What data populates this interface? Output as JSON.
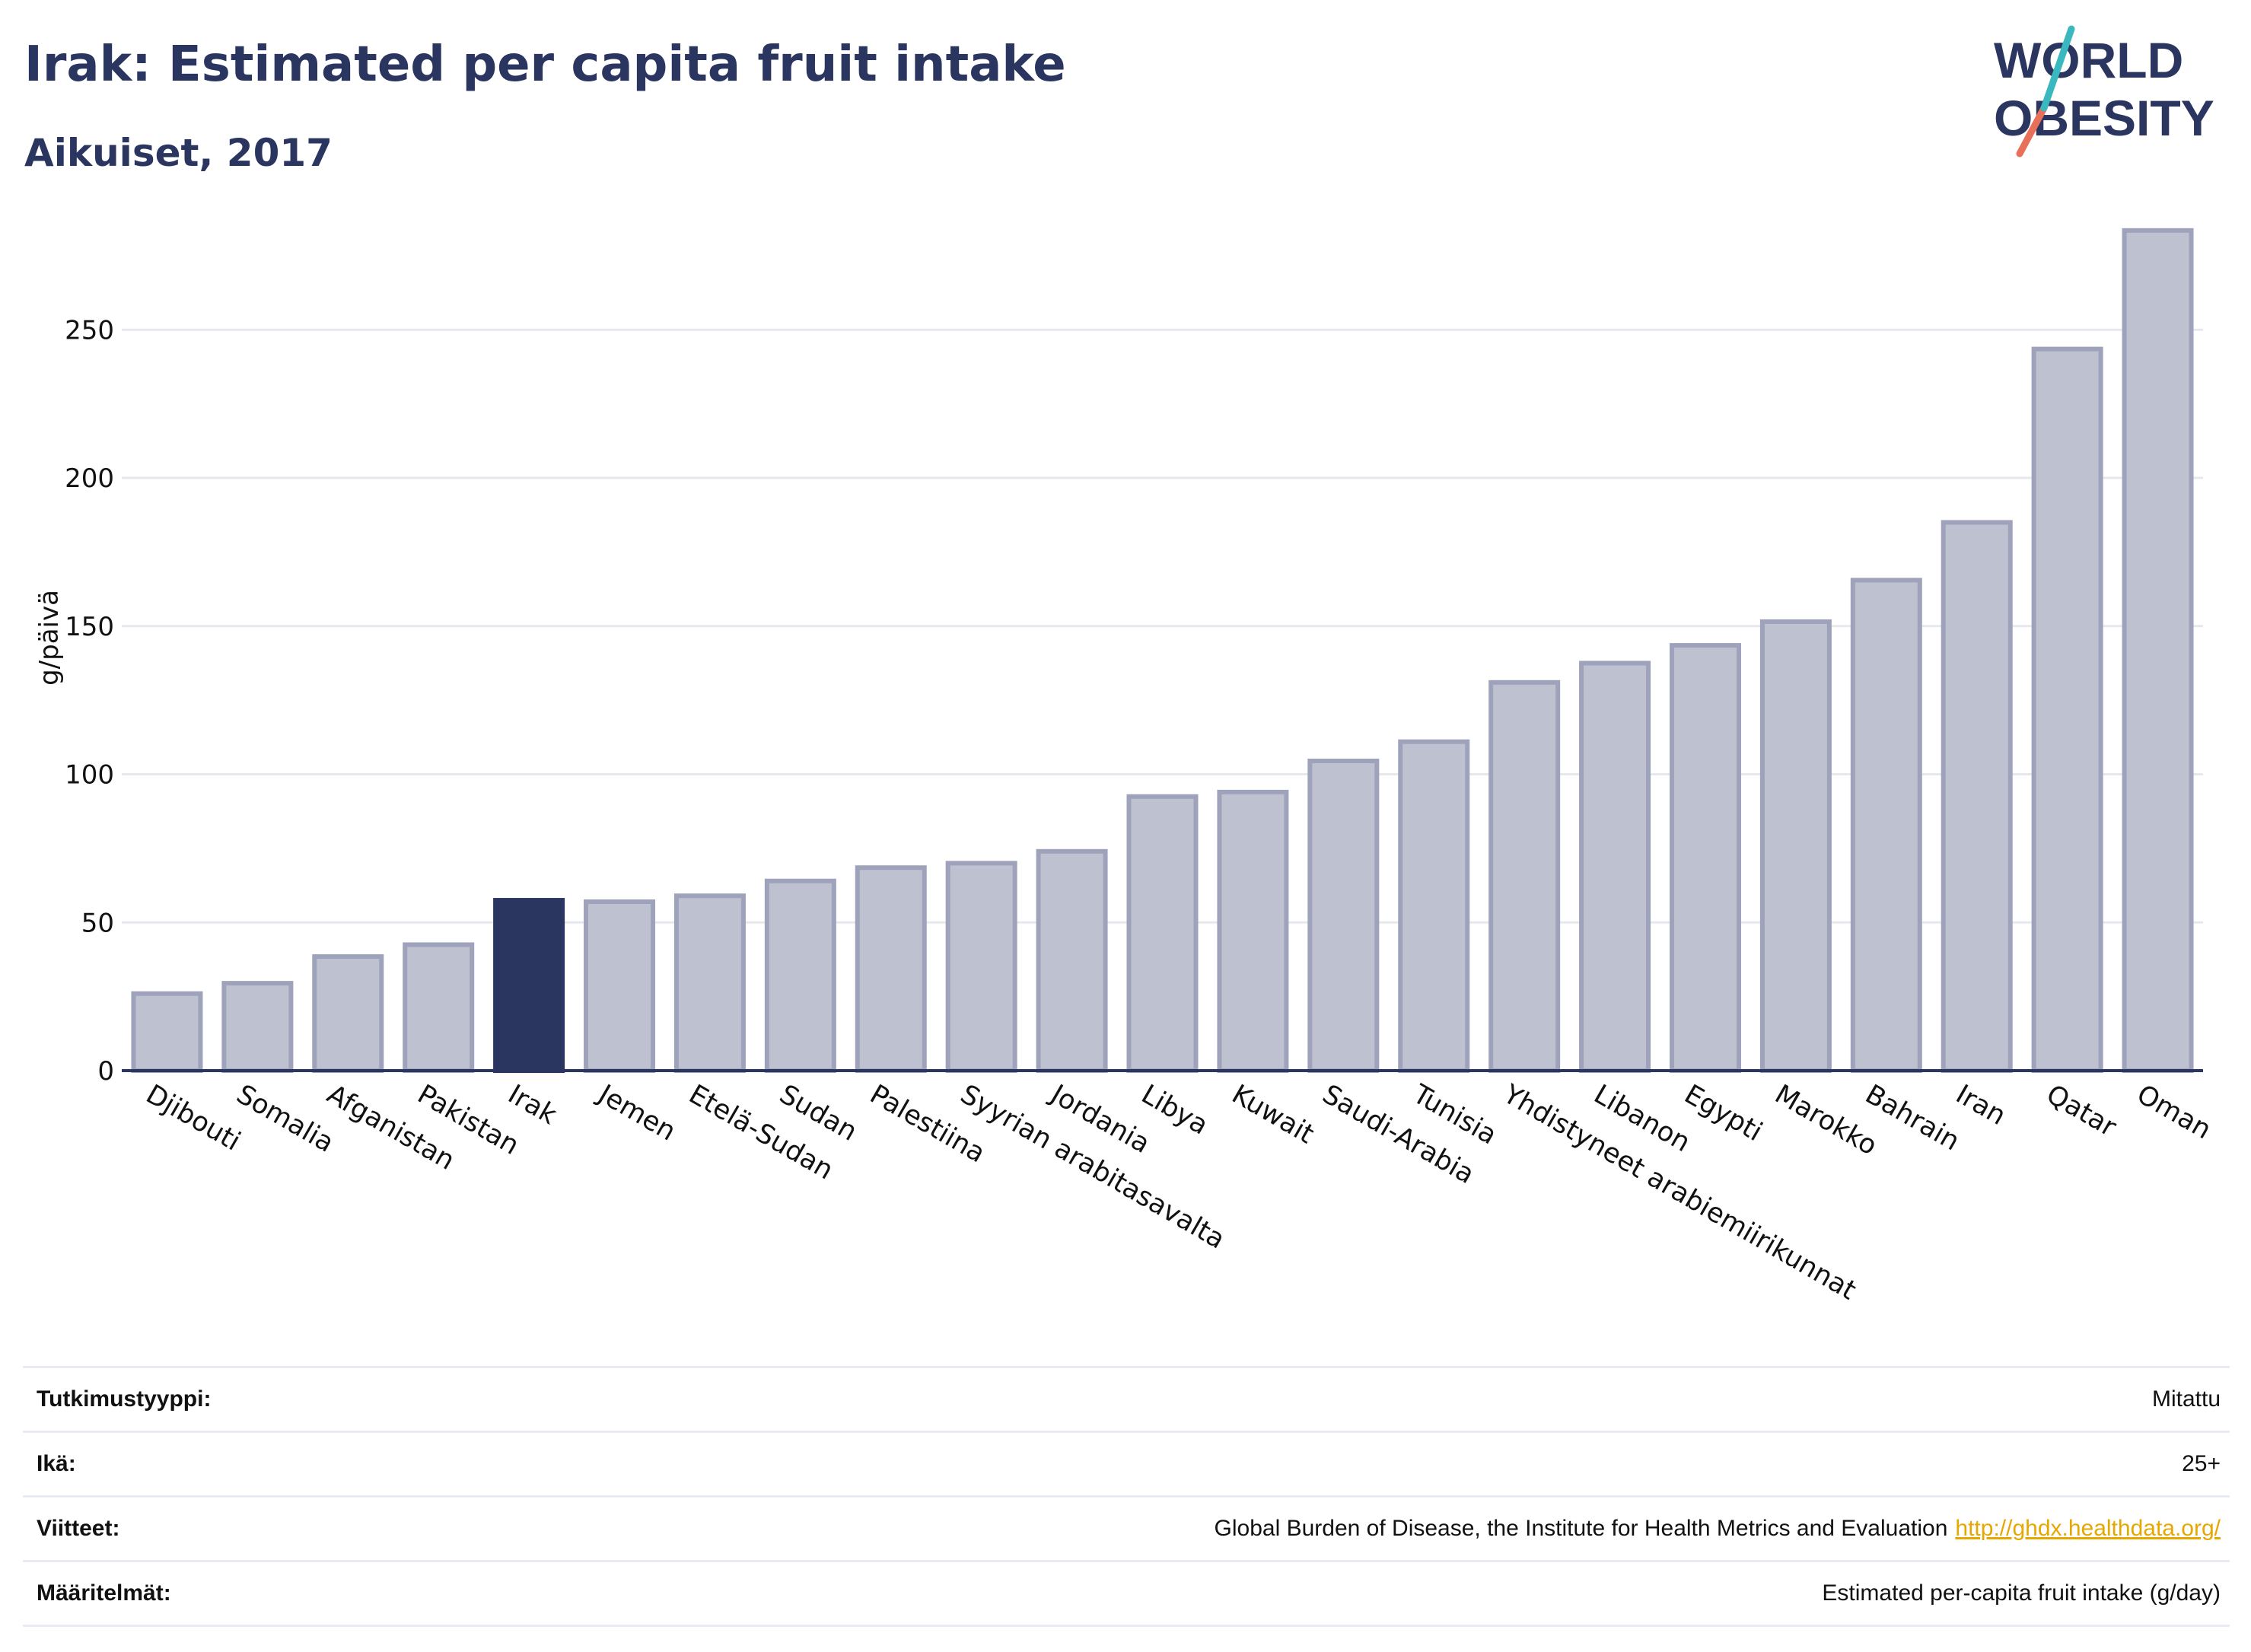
{
  "header": {
    "title": "Irak: Estimated per capita fruit intake",
    "subtitle": "Aikuiset, 2017"
  },
  "logo": {
    "line1": "WORLD",
    "line2": "OBESITY",
    "accent": "#e8705a",
    "accent2": "#3ab8c0"
  },
  "colors": {
    "highlight": "#2a3560",
    "bar": "#bec1cf",
    "bar_stroke": "#9ea3bb",
    "axis": "#2a3560",
    "grid": "#e6e8ee"
  },
  "chart_data": {
    "type": "bar",
    "title": "Irak: Estimated per capita fruit intake",
    "subtitle": "Aikuiset, 2017",
    "ylabel": "g/päivä",
    "xlabel": "",
    "ylim": [
      0,
      290
    ],
    "yticks": [
      0,
      50,
      100,
      150,
      200,
      250
    ],
    "grid": true,
    "highlight": "Irak",
    "categories": [
      "Djibouti",
      "Somalia",
      "Afganistan",
      "Pakistan",
      "Irak",
      "Jemen",
      "Etelä-Sudan",
      "Sudan",
      "Palestiina",
      "Syyrian arabitasavalta",
      "Jordania",
      "Libya",
      "Kuwait",
      "Saudi-Arabia",
      "Tunisia",
      "Yhdistyneet arabiemiirikunnat",
      "Libanon",
      "Egypti",
      "Marokko",
      "Bahrain",
      "Iran",
      "Qatar",
      "Oman"
    ],
    "values": [
      26,
      29.5,
      38.5,
      42.5,
      57.5,
      57,
      59,
      64,
      68.5,
      70,
      74,
      92.5,
      94,
      104.5,
      111,
      131,
      137.5,
      143.5,
      151.5,
      165.5,
      185,
      243.5,
      283.5
    ]
  },
  "meta": [
    {
      "label": "Tutkimustyyppi:",
      "value": "Mitattu"
    },
    {
      "label": "Ikä:",
      "value": "25+"
    },
    {
      "label": "Viitteet:",
      "value": "Global Burden of Disease, the Institute for Health Metrics and Evaluation",
      "link": "http://ghdx.healthdata.org/"
    },
    {
      "label": "Määritelmät:",
      "value": "Estimated per-capita fruit intake (g/day)"
    }
  ]
}
